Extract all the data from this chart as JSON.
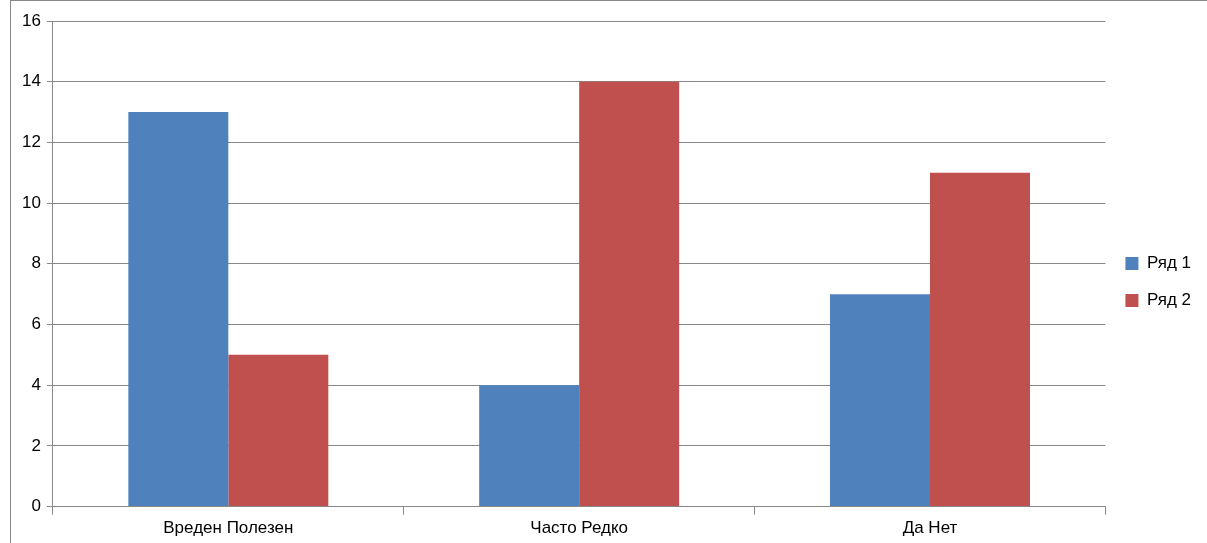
{
  "chart_data": {
    "type": "bar",
    "categories": [
      "Вреден Полезен",
      "Часто Редко",
      "Да Нет"
    ],
    "series": [
      {
        "name": "Ряд 1",
        "color": "#4f81bd",
        "values": [
          13,
          4,
          7
        ]
      },
      {
        "name": "Ряд 2",
        "color": "#c0504d",
        "values": [
          5,
          14,
          11
        ]
      }
    ],
    "ylim": [
      0,
      16
    ],
    "yticks": [
      0,
      2,
      4,
      6,
      8,
      10,
      12,
      14,
      16
    ],
    "grid": "y",
    "legend": "right"
  }
}
